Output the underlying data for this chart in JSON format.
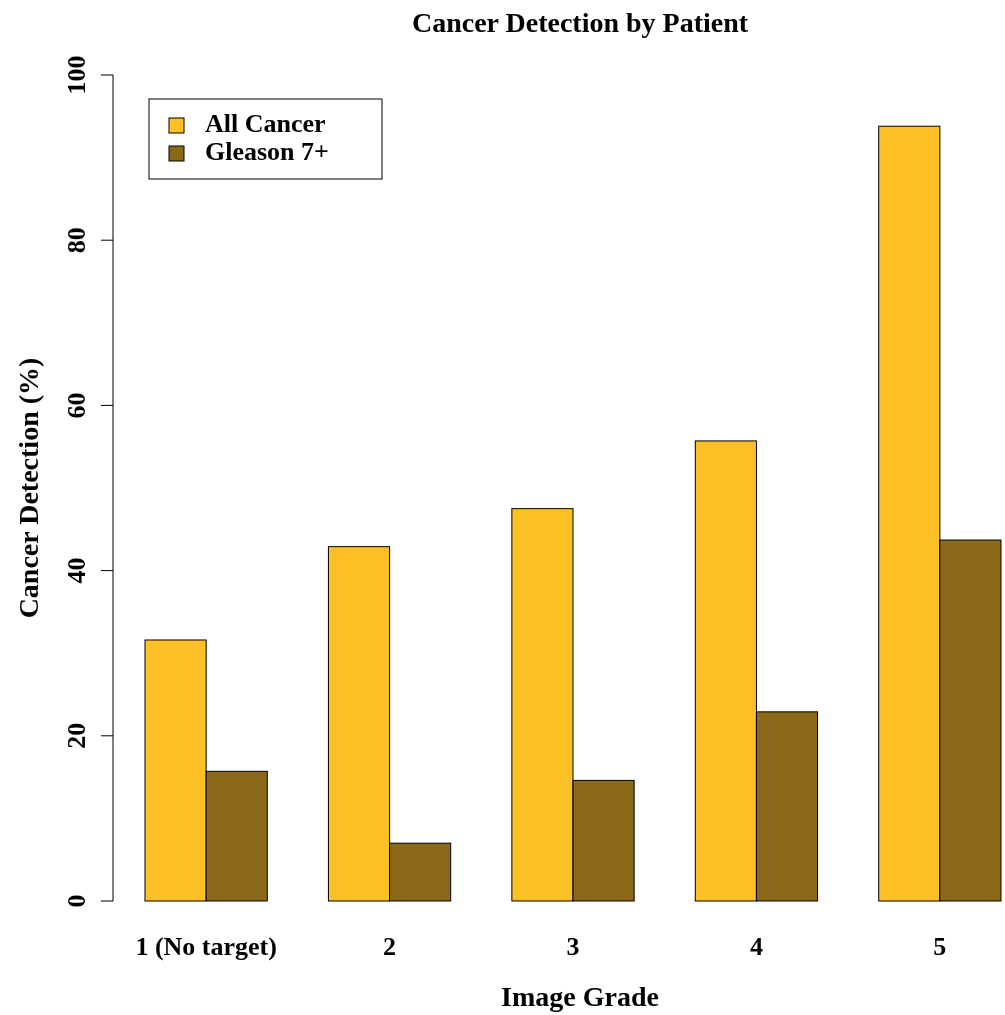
{
  "chart_data": {
    "type": "bar",
    "title": "Cancer Detection by Patient",
    "xlabel": "Image Grade",
    "ylabel": "Cancer Detection (%)",
    "categories": [
      "1 (No target)",
      "2",
      "3",
      "4",
      "5"
    ],
    "series": [
      {
        "name": "All Cancer",
        "color": "#fdc127",
        "values": [
          31.6,
          42.9,
          47.5,
          55.7,
          93.8
        ]
      },
      {
        "name": "Gleason 7+",
        "color": "#8b6918",
        "values": [
          15.7,
          7.0,
          14.6,
          22.9,
          43.7
        ]
      }
    ],
    "ylim": [
      0,
      100
    ],
    "yticks": [
      0,
      20,
      40,
      60,
      80,
      100
    ],
    "grid": false,
    "legend": "top left"
  }
}
